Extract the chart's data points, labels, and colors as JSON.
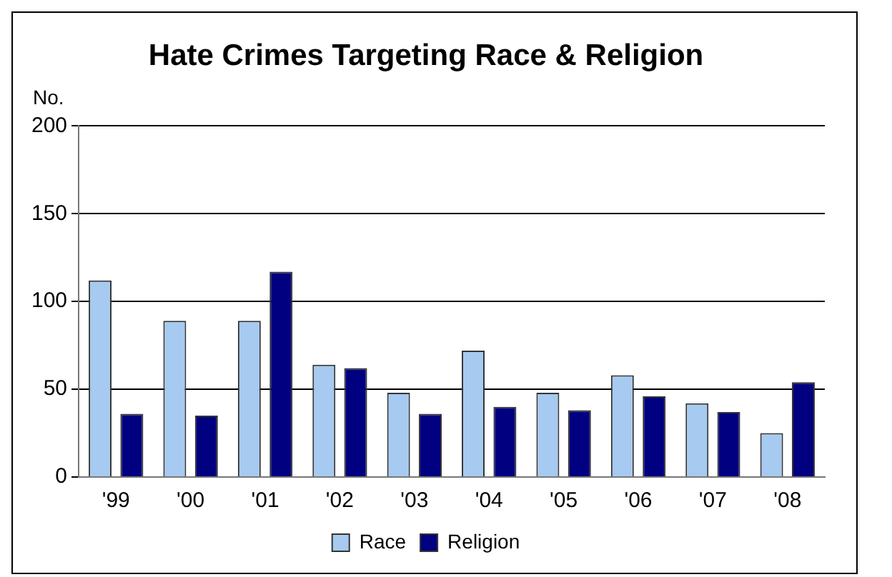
{
  "chart_data": {
    "type": "bar",
    "title": "Hate Crimes Targeting Race & Religion",
    "ylabel": "No.",
    "categories": [
      "'99",
      "'00",
      "'01",
      "'02",
      "'03",
      "'04",
      "'05",
      "'06",
      "'07",
      "'08"
    ],
    "series": [
      {
        "name": "Race",
        "color": "#a6caf0",
        "values": [
          112,
          89,
          89,
          64,
          48,
          72,
          48,
          58,
          42,
          25
        ]
      },
      {
        "name": "Religion",
        "color": "#000080",
        "values": [
          36,
          35,
          117,
          62,
          36,
          40,
          38,
          46,
          37,
          54
        ]
      }
    ],
    "ylim": [
      0,
      200
    ],
    "yticks": [
      0,
      50,
      100,
      150,
      200
    ],
    "grid": "y",
    "legend": "bottom"
  }
}
